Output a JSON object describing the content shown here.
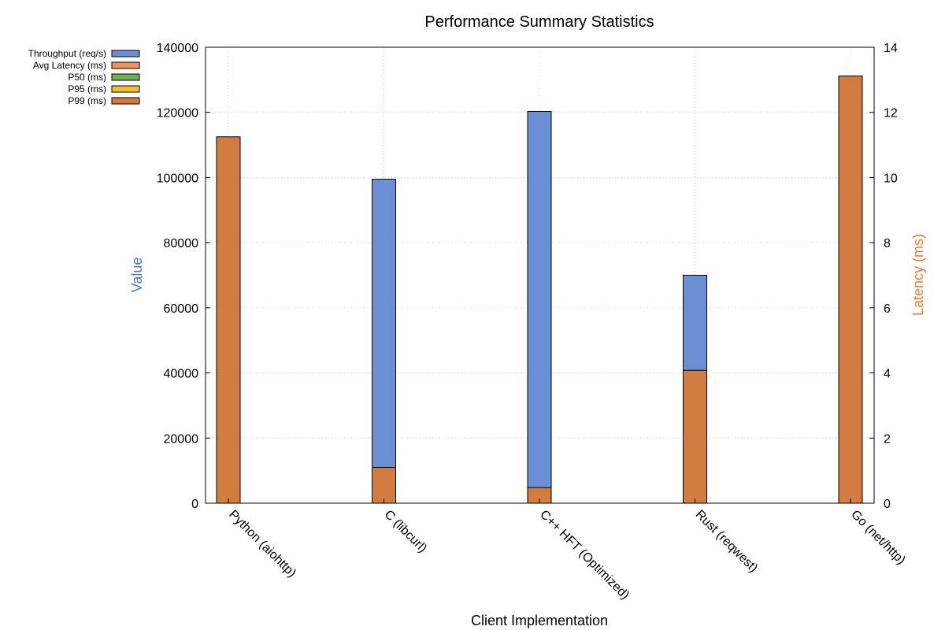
{
  "chart_data": {
    "type": "bar",
    "title": "Performance Summary Statistics",
    "xlabel": "Client Implementation",
    "ylabel": "Value",
    "y2label": "Latency (ms)",
    "ylim": [
      0,
      140000
    ],
    "y2lim": [
      0,
      14
    ],
    "yticks": [
      "0",
      "20000",
      "40000",
      "60000",
      "80000",
      "100000",
      "120000",
      "140000"
    ],
    "y2ticks": [
      "0",
      "2",
      "4",
      "6",
      "8",
      "10",
      "12",
      "14"
    ],
    "grid": true,
    "legend_position": "top-left",
    "categories": [
      "Python (aiohttp)",
      "C (libcurl)",
      "C++ HFT (Optimized)",
      "Rust (reqwest)",
      "Go (net/http)"
    ],
    "series": [
      {
        "name": "Throughput (req/s)",
        "axis": "left",
        "color": "#6a8fd4",
        "values": [
          null,
          99500,
          120300,
          70000,
          null
        ]
      },
      {
        "name": "Avg Latency (ms)",
        "axis": "right",
        "color": "#f0915a",
        "values": [
          null,
          null,
          null,
          null,
          null
        ]
      },
      {
        "name": "P50 (ms)",
        "axis": "right",
        "color": "#6fae55",
        "values": [
          null,
          null,
          null,
          null,
          null
        ]
      },
      {
        "name": "P95 (ms)",
        "axis": "right",
        "color": "#f5bf2c",
        "values": [
          null,
          null,
          null,
          null,
          null
        ]
      },
      {
        "name": "P99 (ms)",
        "axis": "right",
        "color": "#d27c40",
        "values": [
          11.25,
          1.1,
          0.48,
          4.08,
          13.12
        ]
      }
    ]
  },
  "colors": {
    "ylabel": "#4b78c9",
    "y2label": "#ee7c34"
  }
}
